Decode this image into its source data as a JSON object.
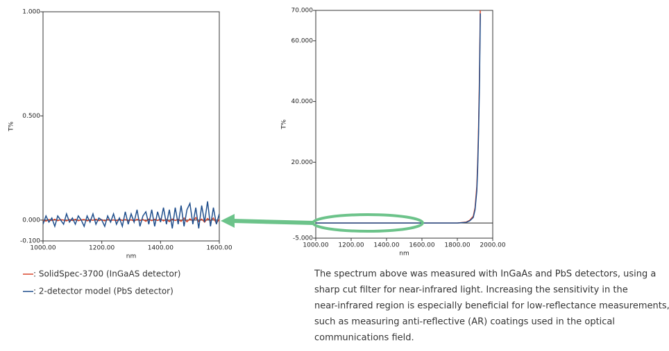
{
  "chart_data": [
    {
      "type": "line",
      "ylabel": "T%",
      "xlabel": "nm",
      "xlim": [
        1000,
        1600
      ],
      "ylim": [
        -0.1,
        1.0
      ],
      "xticks": [
        {
          "value": 1000,
          "label": "1000.00"
        },
        {
          "value": 1200,
          "label": "1200.00"
        },
        {
          "value": 1400,
          "label": "1400.00"
        },
        {
          "value": 1600,
          "label": "1600.00"
        }
      ],
      "yticks": [
        {
          "value": 1.0,
          "label": "1.000"
        },
        {
          "value": 0.5,
          "label": "0.500"
        },
        {
          "value": 0,
          "label": "0.000"
        },
        {
          "value": -0.1,
          "label": "-0.100"
        }
      ],
      "x": [
        1000,
        1010,
        1020,
        1030,
        1040,
        1050,
        1060,
        1070,
        1080,
        1090,
        1100,
        1110,
        1120,
        1130,
        1140,
        1150,
        1160,
        1170,
        1180,
        1190,
        1200,
        1210,
        1220,
        1230,
        1240,
        1250,
        1260,
        1270,
        1280,
        1290,
        1300,
        1310,
        1320,
        1330,
        1340,
        1350,
        1360,
        1370,
        1380,
        1390,
        1400,
        1410,
        1420,
        1430,
        1440,
        1450,
        1460,
        1470,
        1480,
        1490,
        1500,
        1510,
        1520,
        1530,
        1540,
        1550,
        1560,
        1570,
        1580,
        1590,
        1600
      ],
      "series": [
        {
          "name": ": SolidSpec-3700 (InGaAS detector)",
          "color": "#d9452b",
          "values": [
            0.0,
            -0.005,
            0.003,
            -0.002,
            0.004,
            -0.003,
            0.002,
            0.0,
            -0.004,
            0.003,
            -0.002,
            0.004,
            -0.003,
            0.001,
            0.003,
            -0.004,
            0.002,
            -0.001,
            0.004,
            -0.003,
            0.002,
            -0.004,
            0.003,
            -0.002,
            0.001,
            -0.003,
            0.005,
            -0.002,
            0.003,
            -0.004,
            0.002,
            -0.005,
            0.004,
            -0.002,
            0.003,
            -0.006,
            0.005,
            -0.003,
            0.004,
            -0.002,
            0.006,
            -0.004,
            0.003,
            -0.007,
            0.005,
            -0.002,
            0.004,
            -0.006,
            0.01,
            -0.008,
            0.006,
            -0.004,
            0.012,
            -0.007,
            0.005,
            -0.01,
            0.008,
            -0.003,
            0.01,
            -0.015,
            0.004
          ]
        },
        {
          "name": ": 2-detector model (PbS detector)",
          "color": "#1f4e8c",
          "values": [
            -0.02,
            0.02,
            -0.01,
            0.01,
            -0.03,
            0.02,
            0.0,
            -0.02,
            0.03,
            -0.01,
            0.01,
            -0.02,
            0.02,
            0.0,
            -0.03,
            0.02,
            -0.01,
            0.03,
            -0.02,
            0.01,
            0.0,
            -0.03,
            0.02,
            -0.01,
            0.03,
            -0.02,
            0.01,
            -0.03,
            0.04,
            -0.02,
            0.03,
            -0.01,
            0.05,
            -0.03,
            0.02,
            0.04,
            -0.02,
            0.05,
            -0.03,
            0.04,
            -0.01,
            0.06,
            -0.02,
            0.05,
            -0.04,
            0.06,
            -0.02,
            0.07,
            -0.03,
            0.05,
            0.08,
            -0.02,
            0.06,
            -0.04,
            0.07,
            -0.01,
            0.09,
            -0.03,
            0.06,
            -0.02,
            0.03
          ]
        }
      ]
    },
    {
      "type": "line",
      "ylabel": "T%",
      "xlabel": "nm",
      "xlim": [
        1000,
        2000
      ],
      "ylim": [
        -5,
        70
      ],
      "xticks": [
        {
          "value": 1000,
          "label": "1000.00"
        },
        {
          "value": 1200,
          "label": "1200.00"
        },
        {
          "value": 1400,
          "label": "1400.00"
        },
        {
          "value": 1600,
          "label": "1600.00"
        },
        {
          "value": 1800,
          "label": "1800.00"
        },
        {
          "value": 2000,
          "label": "2000.00"
        }
      ],
      "yticks": [
        {
          "value": 70,
          "label": "70.000"
        },
        {
          "value": 60,
          "label": "60.000"
        },
        {
          "value": 40,
          "label": "40.000"
        },
        {
          "value": 20,
          "label": "20.000"
        },
        {
          "value": -5,
          "label": "-5.000"
        }
      ],
      "x": [
        1000,
        1200,
        1400,
        1600,
        1800,
        1850,
        1870,
        1890,
        1900,
        1910,
        1915,
        1920,
        1925,
        1930
      ],
      "series": [
        {
          "color": "#d9452b",
          "values": [
            0,
            0,
            0,
            0,
            0,
            0.3,
            0.9,
            2.2,
            5,
            12,
            20,
            32,
            48,
            72
          ]
        },
        {
          "color": "#1f4e8c",
          "values": [
            0,
            0,
            0,
            0,
            0,
            0.2,
            0.7,
            1.8,
            4.3,
            10.5,
            18,
            29.5,
            45,
            69
          ]
        }
      ]
    }
  ],
  "caption": [
    "The spectrum above was measured with InGaAs and PbS detectors, using a",
    "sharp cut filter for near-infrared light. Increasing the sensitivity in the",
    "near-infrared region is especially beneficial for low-reflectance measurements,",
    "such as measuring anti-reflective (AR) coatings used in the optical",
    "communications field."
  ]
}
